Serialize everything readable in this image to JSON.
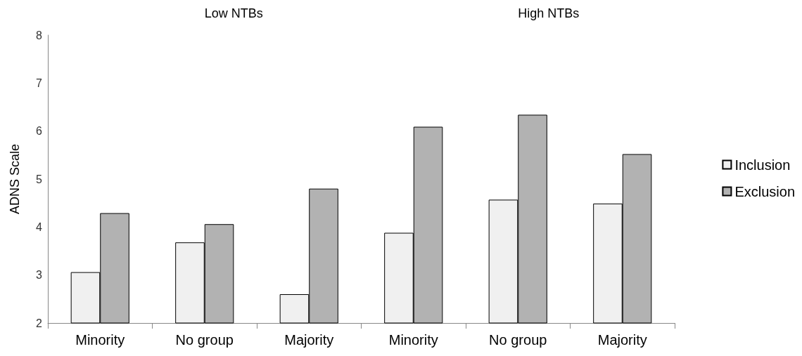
{
  "chart_data": {
    "type": "bar",
    "ylabel": "ADNS Scale",
    "annotations": [
      "Low NTBs",
      "High NTBs"
    ],
    "categories": [
      "Minority",
      "No group",
      "Majority",
      "Minority",
      "No group",
      "Majority"
    ],
    "series": [
      {
        "name": "Inclusion",
        "color": "#f0f0f0",
        "values": [
          3.06,
          3.68,
          2.6,
          3.88,
          4.57,
          4.49
        ]
      },
      {
        "name": "Exclusion",
        "color": "#b2b2b2",
        "values": [
          4.29,
          4.06,
          4.8,
          6.09,
          6.34,
          5.52
        ]
      }
    ],
    "ylim": [
      2,
      8
    ],
    "yticks": [
      2,
      3,
      4,
      5,
      6,
      7,
      8
    ],
    "grid": false,
    "legend": "right"
  }
}
